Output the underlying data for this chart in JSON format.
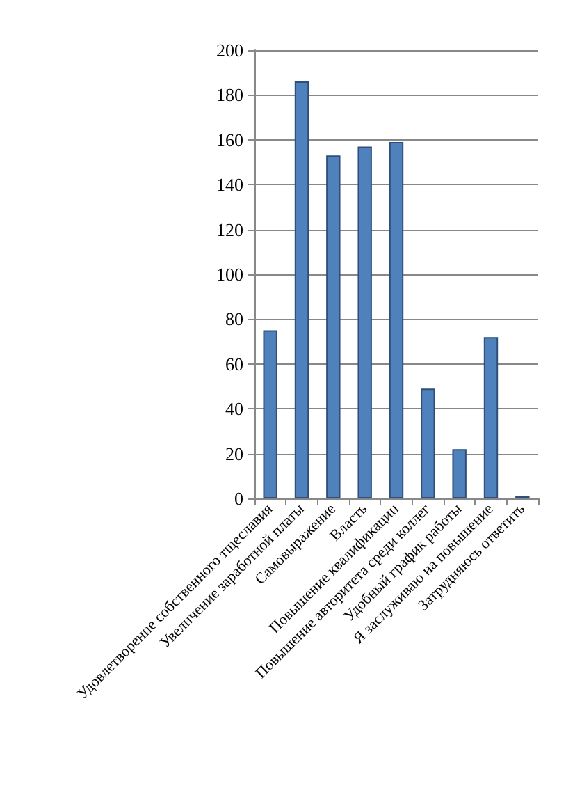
{
  "chart_data": {
    "type": "bar",
    "categories": [
      "Удовлетворение собственного тщеславия",
      "Увеличение заработной платы",
      "Самовыражение",
      "Власть",
      "Повышение квалификации",
      "Повышение авторитета среди коллег",
      "Удобный график работы",
      "Я заслуживаю на повышение",
      "Затрудняюсь ответить"
    ],
    "values": [
      75,
      186,
      153,
      157,
      159,
      49,
      22,
      72,
      1
    ],
    "color": "#4f81bd",
    "ylim": [
      0,
      200
    ],
    "yticks": [
      0,
      20,
      40,
      60,
      80,
      100,
      120,
      140,
      160,
      180,
      200
    ],
    "grid": "y"
  }
}
